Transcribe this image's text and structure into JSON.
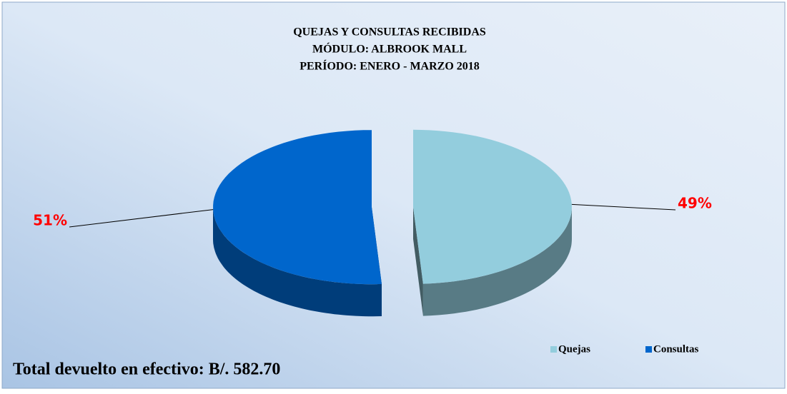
{
  "chart_data": {
    "type": "pie",
    "title": [
      "QUEJAS Y CONSULTAS RECIBIDAS",
      "MÓDULO: ALBROOK MALL",
      "PERÍODO: ENERO - MARZO 2018"
    ],
    "categories": [
      "Quejas",
      "Consultas"
    ],
    "values": [
      49,
      51
    ],
    "value_labels": [
      "49%",
      "51%"
    ],
    "colors": [
      "#93cddd",
      "#0066cc"
    ],
    "label_color": "#ff0000",
    "legend": "bottom-right",
    "annotation": "Total devuelto en efectivo: B/. 582.70"
  }
}
